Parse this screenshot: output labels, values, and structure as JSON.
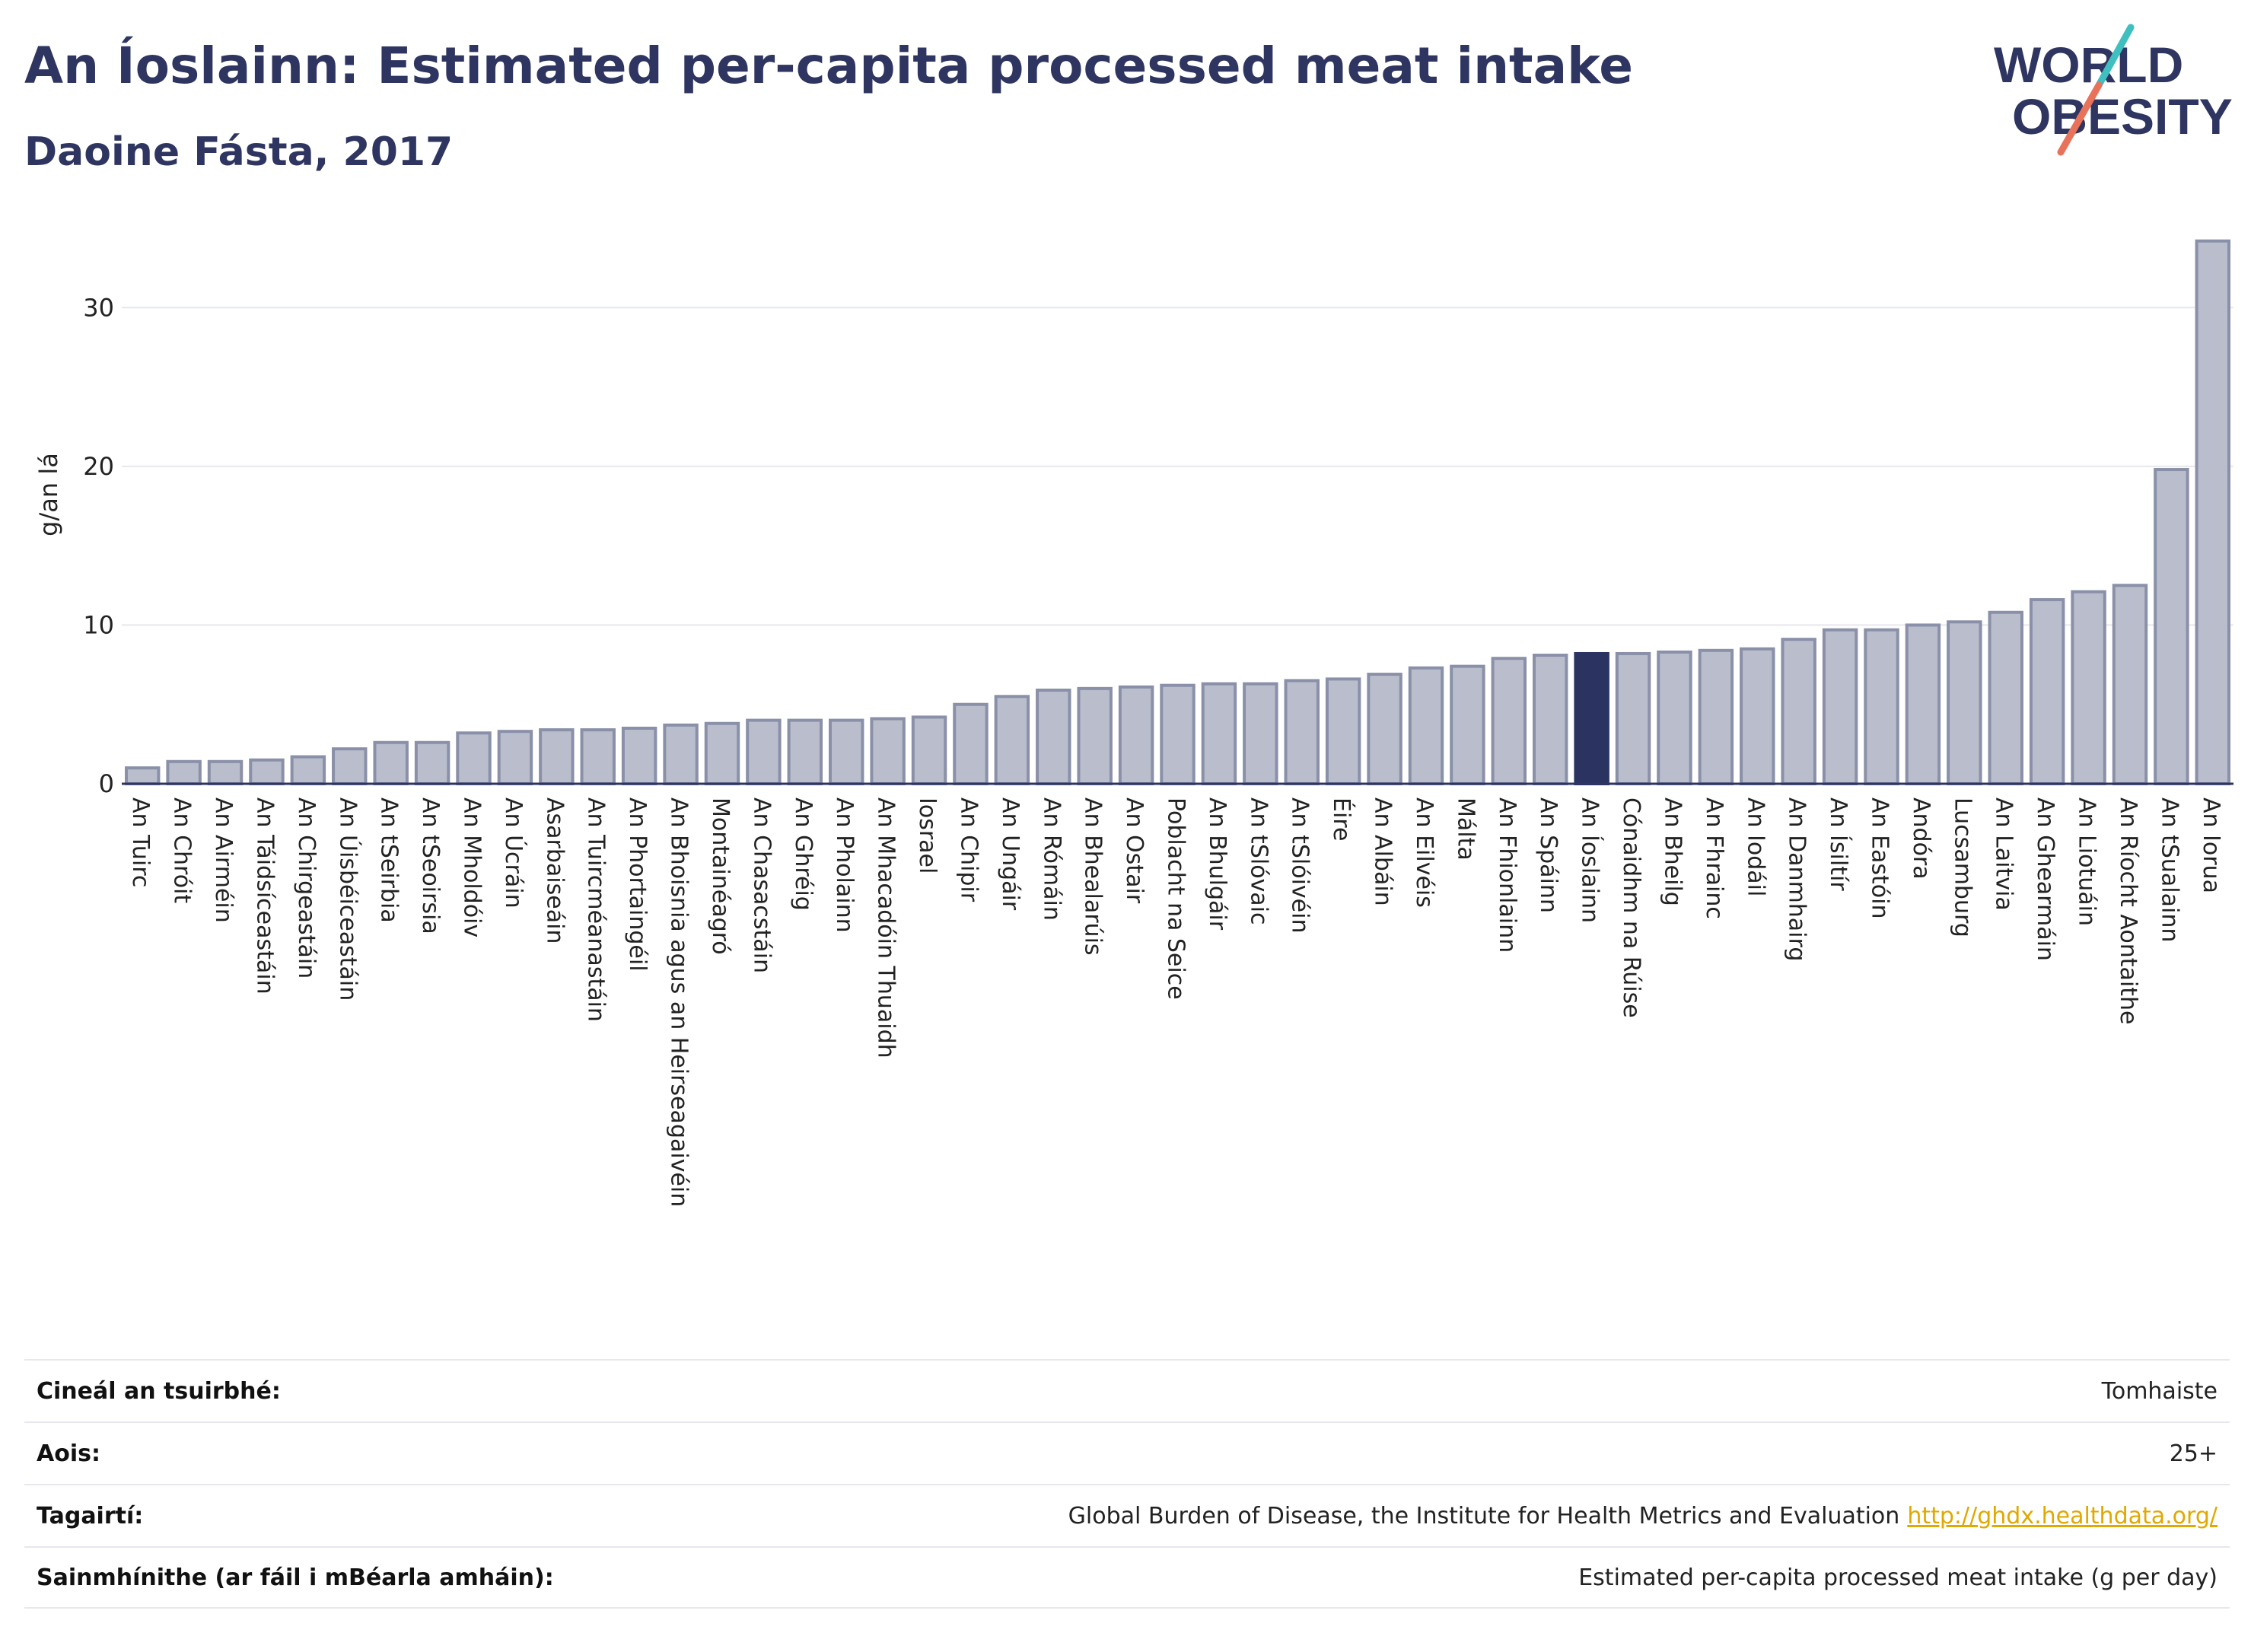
{
  "header": {
    "title": "An Íoslainn: Estimated per-capita processed meat intake",
    "subtitle": "Daoine Fásta, 2017"
  },
  "logo": {
    "line1": "WORLD",
    "line2": "OBESITY"
  },
  "colors": {
    "bar": "#b9bdcc",
    "bar_border": "#8a90a8",
    "highlight": "#2b3461",
    "title": "#2e3560",
    "logo_teal": "#3fbfbf",
    "logo_coral": "#e8735a",
    "link": "#e0a800"
  },
  "chart_data": {
    "type": "bar",
    "ylabel": "g/an lá",
    "ylim": [
      0,
      35
    ],
    "yticks": [
      0,
      10,
      20,
      30
    ],
    "grid": true,
    "highlight": "An Íoslainn",
    "categories": [
      "An Tuirc",
      "An Chróit",
      "An Airméin",
      "An Táidsíceastáin",
      "An Chirgeastáin",
      "An Úisbéiceastáin",
      "An tSeirbia",
      "An tSeoirsia",
      "An Mholdóiv",
      "An Úcráin",
      "Asarbaiseáin",
      "An Tuircméanastáin",
      "An Phortaingéil",
      "An Bhoisnia agus an Heirseagaivéin",
      "Montainéagró",
      "An Chasacstáin",
      "An Ghréig",
      "An Pholainn",
      "An Mhacadóin Thuaidh",
      "Iosrael",
      "An Chipir",
      "An Ungáir",
      "An Rómáin",
      "An Bhealarúis",
      "An Ostair",
      "Poblacht na Seice",
      "An Bhulgáir",
      "An tSlóvaic",
      "An tSlóivéin",
      "Éire",
      "An Albáin",
      "An Eilvéis",
      "Málta",
      "An Fhionlainn",
      "An Spáinn",
      "An Íoslainn",
      "Cónaidhm na Rúise",
      "An Bheilg",
      "An Fhrainc",
      "An Iodáil",
      "An Danmhairg",
      "An Ísiltír",
      "An Eastóin",
      "Andóra",
      "Lucsamburg",
      "An Laitvia",
      "An Ghearmáin",
      "An Liotuáin",
      "An Ríocht Aontaithe",
      "An tSualainn",
      "An Iorua"
    ],
    "values": [
      1.0,
      1.4,
      1.4,
      1.5,
      1.7,
      2.2,
      2.6,
      2.6,
      3.2,
      3.3,
      3.4,
      3.4,
      3.5,
      3.7,
      3.8,
      4.0,
      4.0,
      4.0,
      4.1,
      4.2,
      5.0,
      5.5,
      5.9,
      6.0,
      6.1,
      6.2,
      6.3,
      6.3,
      6.5,
      6.6,
      6.9,
      7.3,
      7.4,
      7.9,
      8.1,
      8.2,
      8.2,
      8.3,
      8.4,
      8.5,
      9.1,
      9.7,
      9.7,
      10.0,
      10.2,
      10.8,
      11.6,
      12.1,
      12.5,
      19.8,
      34.2
    ]
  },
  "info": [
    {
      "label": "Cineál an tsuirbhé:",
      "value": "Tomhaiste"
    },
    {
      "label": "Aois:",
      "value": "25+"
    },
    {
      "label": "Tagairtí:",
      "value": "Global Burden of Disease, the Institute for Health Metrics and Evaluation",
      "link": "http://ghdx.healthdata.org/"
    },
    {
      "label": "Sainmhínithe (ar fáil i mBéarla amháin):",
      "value": "Estimated per-capita processed meat intake (g per day)"
    }
  ]
}
